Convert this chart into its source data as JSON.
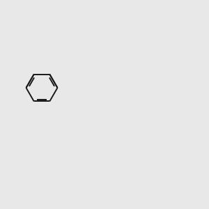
{
  "bg": "#e8e8e8",
  "bc": "#1a1a1a",
  "nc": "#0000ee",
  "sc": "#bbaa00",
  "oc": "#cc0000",
  "nhc": "#007777",
  "lw": 1.4,
  "fs": 8.5,
  "fsm": 7.0,
  "BL": 0.75
}
